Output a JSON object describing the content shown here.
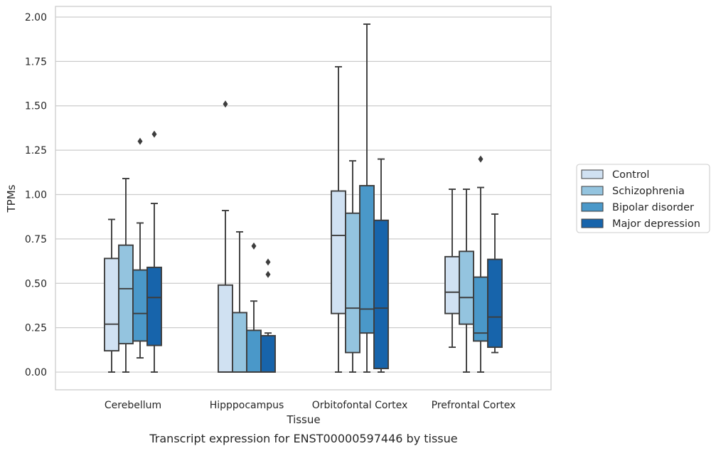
{
  "chart_data": {
    "type": "box",
    "title": "",
    "caption": "Transcript expression for ENST00000597446 by tissue",
    "xlabel": "Tissue",
    "ylabel": "TPMs",
    "ylim": [
      -0.1,
      2.06
    ],
    "yticks": [
      "0.00",
      "0.25",
      "0.50",
      "0.75",
      "1.00",
      "1.25",
      "1.50",
      "1.75",
      "2.00"
    ],
    "grid": "horizontal",
    "legend_position": "right",
    "categories": [
      "Cerebellum",
      "Hipppocampus",
      "Orbitofontal Cortex",
      "Prefrontal Cortex"
    ],
    "series": [
      {
        "name": "Control",
        "color": "#d0e1f2",
        "boxes": [
          {
            "whisker_low": 0.0,
            "q1": 0.12,
            "median": 0.27,
            "q3": 0.64,
            "whisker_high": 0.86,
            "outliers": []
          },
          {
            "whisker_low": 0.0,
            "q1": 0.0,
            "median": 0.0,
            "q3": 0.49,
            "whisker_high": 0.91,
            "outliers": [
              1.51
            ]
          },
          {
            "whisker_low": 0.0,
            "q1": 0.33,
            "median": 0.77,
            "q3": 1.02,
            "whisker_high": 1.72,
            "outliers": []
          },
          {
            "whisker_low": 0.14,
            "q1": 0.33,
            "median": 0.45,
            "q3": 0.65,
            "whisker_high": 1.03,
            "outliers": []
          }
        ]
      },
      {
        "name": "Schizophrenia",
        "color": "#94c4df",
        "boxes": [
          {
            "whisker_low": 0.0,
            "q1": 0.16,
            "median": 0.47,
            "q3": 0.715,
            "whisker_high": 1.09,
            "outliers": []
          },
          {
            "whisker_low": 0.0,
            "q1": 0.0,
            "median": 0.0,
            "q3": 0.335,
            "whisker_high": 0.79,
            "outliers": []
          },
          {
            "whisker_low": 0.0,
            "q1": 0.11,
            "median": 0.36,
            "q3": 0.895,
            "whisker_high": 1.19,
            "outliers": []
          },
          {
            "whisker_low": 0.0,
            "q1": 0.27,
            "median": 0.42,
            "q3": 0.68,
            "whisker_high": 1.03,
            "outliers": []
          }
        ]
      },
      {
        "name": "Bipolar disorder",
        "color": "#4a98c9",
        "boxes": [
          {
            "whisker_low": 0.08,
            "q1": 0.175,
            "median": 0.33,
            "q3": 0.575,
            "whisker_high": 0.84,
            "outliers": [
              1.3
            ]
          },
          {
            "whisker_low": 0.0,
            "q1": 0.0,
            "median": 0.0,
            "q3": 0.235,
            "whisker_high": 0.4,
            "outliers": [
              0.71
            ]
          },
          {
            "whisker_low": 0.0,
            "q1": 0.22,
            "median": 0.355,
            "q3": 1.05,
            "whisker_high": 1.96,
            "outliers": []
          },
          {
            "whisker_low": 0.0,
            "q1": 0.175,
            "median": 0.22,
            "q3": 0.535,
            "whisker_high": 1.04,
            "outliers": [
              1.2
            ]
          }
        ]
      },
      {
        "name": "Major depression",
        "color": "#1764ab",
        "boxes": [
          {
            "whisker_low": 0.0,
            "q1": 0.15,
            "median": 0.42,
            "q3": 0.59,
            "whisker_high": 0.95,
            "outliers": [
              1.34
            ]
          },
          {
            "whisker_low": 0.0,
            "q1": 0.0,
            "median": 0.0,
            "q3": 0.205,
            "whisker_high": 0.22,
            "outliers": [
              0.62,
              0.55
            ]
          },
          {
            "whisker_low": 0.0,
            "q1": 0.02,
            "median": 0.36,
            "q3": 0.855,
            "whisker_high": 1.2,
            "outliers": []
          },
          {
            "whisker_low": 0.11,
            "q1": 0.14,
            "median": 0.31,
            "q3": 0.635,
            "whisker_high": 0.89,
            "outliers": []
          }
        ]
      }
    ]
  }
}
